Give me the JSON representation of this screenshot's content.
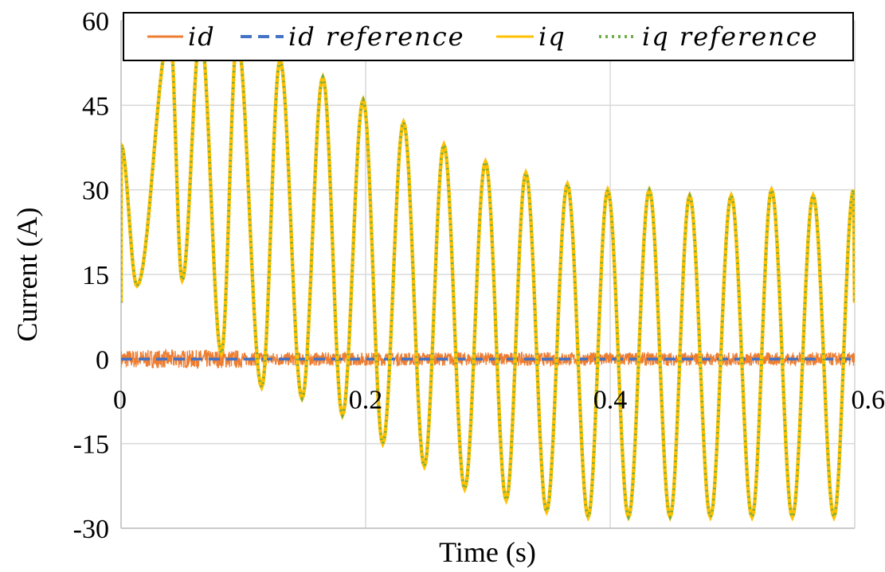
{
  "chart_data": {
    "type": "line",
    "xlabel": "Time (s)",
    "ylabel": "Current (A)",
    "xlim": [
      0,
      0.6
    ],
    "ylim": [
      -30,
      60
    ],
    "x_ticks": [
      0,
      0.2,
      0.4,
      0.6
    ],
    "x_tick_labels": [
      "0",
      "0.2",
      "0.4",
      "0.6"
    ],
    "y_ticks": [
      -30,
      -15,
      0,
      15,
      30,
      45,
      60
    ],
    "y_tick_labels": [
      "-30",
      "-15",
      "0",
      "15",
      "30",
      "45",
      "60"
    ],
    "grid": true,
    "legend_position": "top",
    "colors": {
      "id": "#ED7D31",
      "id_reference": "#4472C4",
      "iq": "#FFC000",
      "iq_reference": "#70AD47"
    },
    "series": [
      {
        "name": "id",
        "style": "solid",
        "description_values": {
          "mean": 0,
          "ripple_amplitude": 1.2
        },
        "x": [
          0,
          0.6
        ],
        "y": [
          0,
          0
        ]
      },
      {
        "name": "id reference",
        "style": "dashed",
        "x": [
          0,
          0.6
        ],
        "y": [
          0,
          0
        ]
      },
      {
        "name": "iq",
        "style": "solid",
        "oscillation_period_s": 0.0335,
        "peaks": {
          "x": [
            0.0,
            0.04,
            0.065,
            0.095,
            0.13,
            0.165,
            0.198,
            0.231,
            0.264,
            0.298,
            0.331,
            0.365,
            0.398,
            0.432,
            0.465,
            0.499,
            0.532,
            0.566,
            0.599
          ],
          "y": [
            38,
            58,
            58,
            57,
            53,
            50,
            46,
            42,
            38,
            35,
            33,
            31,
            30,
            30,
            29,
            29,
            30,
            29,
            30
          ]
        },
        "troughs": {
          "x": [
            0.013,
            0.05,
            0.082,
            0.115,
            0.148,
            0.181,
            0.214,
            0.248,
            0.281,
            0.315,
            0.348,
            0.382,
            0.415,
            0.449,
            0.482,
            0.516,
            0.549,
            0.583
          ],
          "y": [
            13,
            14,
            1,
            -5,
            -7,
            -10,
            -15,
            -19,
            -23,
            -25,
            -27,
            -28,
            -28,
            -28,
            -28,
            -28,
            -28,
            -28
          ]
        }
      },
      {
        "name": "iq reference",
        "style": "dotted",
        "same_as": "iq"
      }
    ]
  }
}
